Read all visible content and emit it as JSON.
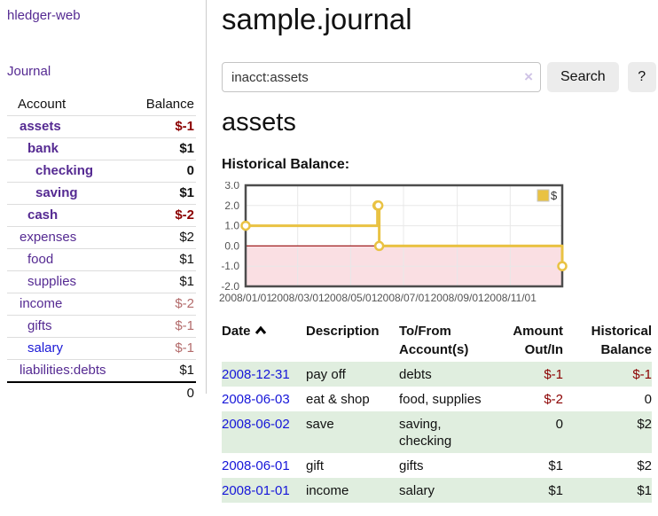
{
  "brand": "hledger-web",
  "nav": {
    "journal": "Journal"
  },
  "sidebar": {
    "header": {
      "account": "Account",
      "balance": "Balance"
    },
    "accounts": [
      {
        "name": "assets",
        "balance": "$-1",
        "depth": 0,
        "emphasis": "bold",
        "balance_tone": "negative-strong"
      },
      {
        "name": "bank",
        "balance": "$1",
        "depth": 1,
        "emphasis": "bold",
        "balance_tone": "normal"
      },
      {
        "name": "checking",
        "balance": "0",
        "depth": 2,
        "emphasis": "bold",
        "balance_tone": "normal"
      },
      {
        "name": "saving",
        "balance": "$1",
        "depth": 2,
        "emphasis": "bold",
        "balance_tone": "normal"
      },
      {
        "name": "cash",
        "balance": "$-2",
        "depth": 1,
        "emphasis": "bold",
        "balance_tone": "negative-strong"
      },
      {
        "name": "expenses",
        "balance": "$2",
        "depth": 0,
        "emphasis": "normal",
        "balance_tone": "normal"
      },
      {
        "name": "food",
        "balance": "$1",
        "depth": 1,
        "emphasis": "normal",
        "balance_tone": "normal"
      },
      {
        "name": "supplies",
        "balance": "$1",
        "depth": 1,
        "emphasis": "normal",
        "balance_tone": "normal"
      },
      {
        "name": "income",
        "balance": "$-2",
        "depth": 0,
        "emphasis": "normal",
        "balance_tone": "negative-soft"
      },
      {
        "name": "gifts",
        "balance": "$-1",
        "depth": 1,
        "emphasis": "normal",
        "balance_tone": "negative-soft"
      },
      {
        "name": "salary",
        "balance": "$-1",
        "depth": 1,
        "emphasis": "normal",
        "balance_tone": "negative-soft"
      },
      {
        "name": "liabilities:debts",
        "balance": "$1",
        "depth": 0,
        "emphasis": "normal",
        "balance_tone": "normal"
      }
    ],
    "total": "0"
  },
  "main": {
    "title": "sample.journal",
    "search": {
      "query": "inacct:assets",
      "clear_icon": "×",
      "search_button": "Search",
      "help_button": "?"
    },
    "account_heading": "assets",
    "section_label": "Historical Balance:"
  },
  "chart_data": {
    "type": "line",
    "step": true,
    "title": "Historical Balance",
    "series": [
      {
        "name": "$",
        "color": "#e9c243",
        "points": [
          {
            "date": "2008-01-01",
            "value": 1
          },
          {
            "date": "2008-06-01",
            "value": 2
          },
          {
            "date": "2008-06-02",
            "value": 2
          },
          {
            "date": "2008-06-03",
            "value": 0
          },
          {
            "date": "2008-12-31",
            "value": -1
          }
        ]
      }
    ],
    "x_ticks": [
      "2008/01/01",
      "2008/03/01",
      "2008/05/01",
      "2008/07/01",
      "2008/09/01",
      "2008/11/01"
    ],
    "y_ticks": [
      3.0,
      2.0,
      1.0,
      0.0,
      -1.0,
      -2.0
    ],
    "xlim": [
      "2008/01/01",
      "2008/12/31"
    ],
    "ylim": [
      -2,
      3
    ],
    "legend": {
      "label": "$",
      "position": "top-right"
    },
    "grid": true,
    "negative_region_color": "#fadfe3",
    "zero_line_color": "#a02020",
    "grid_color": "#e8e8e8",
    "frame_color": "#4d4d4d",
    "tick_label_color": "#545454"
  },
  "register": {
    "columns": {
      "date": "Date",
      "description": "Description",
      "accounts": "To/From Account(s)",
      "amount": "Amount Out/In",
      "balance": "Historical Balance"
    },
    "sort": {
      "column": "date",
      "direction": "ascending"
    },
    "rows": [
      {
        "date": "2008-12-31",
        "description": "pay off",
        "accounts": "debts",
        "amount": "$-1",
        "balance": "$-1"
      },
      {
        "date": "2008-06-03",
        "description": "eat & shop",
        "accounts": "food, supplies",
        "amount": "$-2",
        "balance": "0"
      },
      {
        "date": "2008-06-02",
        "description": "save",
        "accounts": "saving, checking",
        "amount": "0",
        "balance": "$2"
      },
      {
        "date": "2008-06-01",
        "description": "gift",
        "accounts": "gifts",
        "amount": "$1",
        "balance": "$2"
      },
      {
        "date": "2008-01-01",
        "description": "income",
        "accounts": "salary",
        "amount": "$1",
        "balance": "$1"
      }
    ]
  },
  "colors": {
    "link_purple": "#552a92",
    "link_blue": "#1616d9",
    "negative_strong": "#8b0000",
    "negative_soft": "#b36b6b",
    "row_green": "#e0eedf",
    "button_bg": "#ececec",
    "chart_yellow": "#e9c243"
  }
}
